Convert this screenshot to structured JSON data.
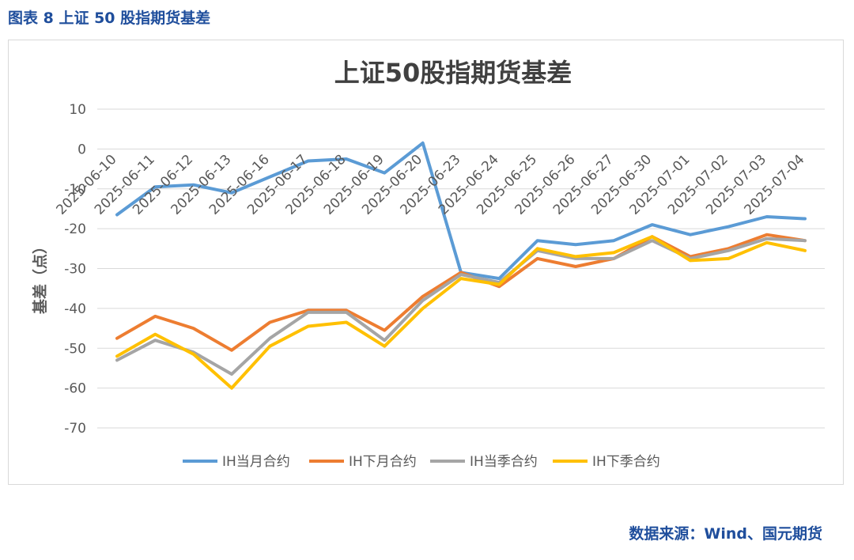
{
  "figure_caption": "图表 8  上证 50 股指期货基差",
  "source_note": "数据来源：Wind、国元期货",
  "chart_data": {
    "type": "line",
    "title": "上证50股指期货基差",
    "xlabel": "",
    "ylabel": "基差（点）",
    "ylim": [
      -70,
      10
    ],
    "yticks": [
      10,
      0,
      -10,
      -20,
      -30,
      -40,
      -50,
      -60,
      -70
    ],
    "grid": true,
    "legend_position": "bottom",
    "categories": [
      "2025-06-10",
      "2025-06-11",
      "2025-06-12",
      "2025-06-13",
      "2025-06-16",
      "2025-06-17",
      "2025-06-18",
      "2025-06-19",
      "2025-06-20",
      "2025-06-23",
      "2025-06-24",
      "2025-06-25",
      "2025-06-26",
      "2025-06-27",
      "2025-06-30",
      "2025-07-01",
      "2025-07-02",
      "2025-07-03",
      "2025-07-04"
    ],
    "series": [
      {
        "name": "IH当月合约",
        "color": "#5b9bd5",
        "values": [
          -16.5,
          -9.5,
          -9.0,
          -11.0,
          -7.0,
          -3.0,
          -2.5,
          -6.0,
          1.5,
          -31.0,
          -32.5,
          -23.0,
          -24.0,
          -23.0,
          -19.0,
          -21.5,
          -19.5,
          -17.0,
          -17.5
        ]
      },
      {
        "name": "IH下月合约",
        "color": "#ed7d31",
        "values": [
          -47.5,
          -42.0,
          -45.0,
          -50.5,
          -43.5,
          -40.5,
          -40.5,
          -45.5,
          -37.0,
          -31.0,
          -34.5,
          -27.5,
          -29.5,
          -27.5,
          -22.0,
          -27.0,
          -25.0,
          -21.5,
          -23.0
        ]
      },
      {
        "name": "IH当季合约",
        "color": "#a5a5a5",
        "values": [
          -53.0,
          -48.0,
          -51.0,
          -56.5,
          -47.5,
          -41.0,
          -41.0,
          -48.0,
          -38.0,
          -31.5,
          -33.5,
          -25.5,
          -27.5,
          -27.5,
          -23.0,
          -27.5,
          -25.5,
          -22.5,
          -23.0
        ]
      },
      {
        "name": "IH下季合约",
        "color": "#ffc000",
        "values": [
          -52.0,
          -46.5,
          -51.5,
          -60.0,
          -49.5,
          -44.5,
          -43.5,
          -49.5,
          -40.0,
          -32.5,
          -34.0,
          -25.0,
          -27.0,
          -26.0,
          -22.0,
          -28.0,
          -27.5,
          -23.5,
          -25.5
        ]
      }
    ]
  }
}
